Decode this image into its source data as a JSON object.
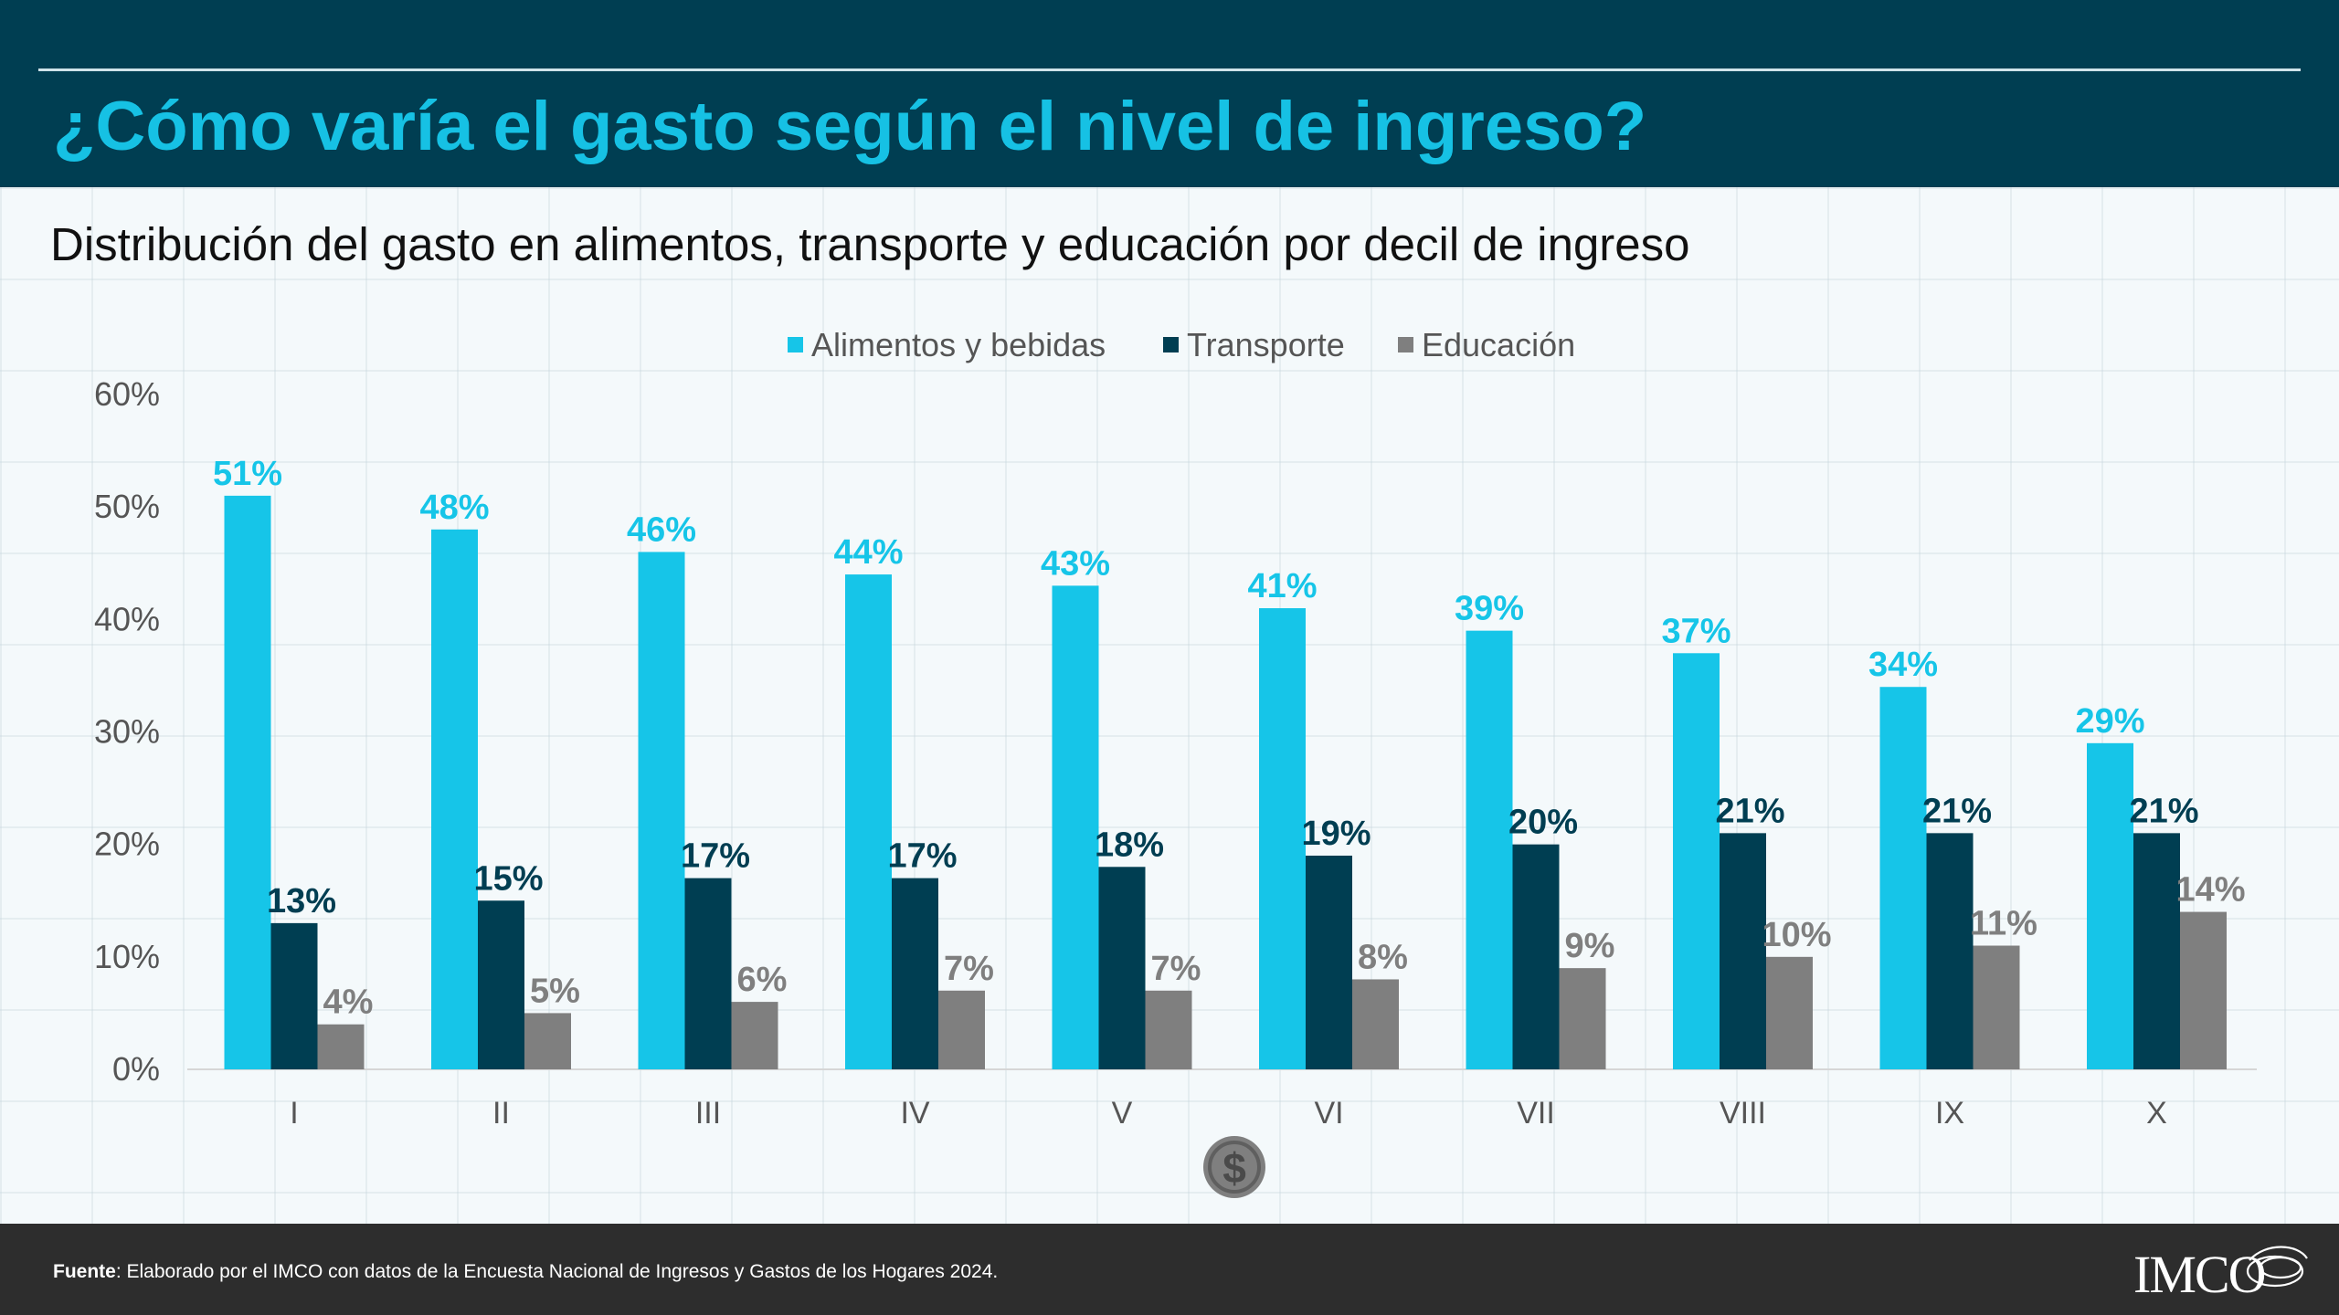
{
  "header": {
    "title": "¿Cómo varía el gasto según el nivel de ingreso?"
  },
  "subtitle": "Distribución del gasto en alimentos, transporte y educación por decil de ingreso",
  "footer": {
    "source_label": "Fuente",
    "source_text": ": Elaborado por el IMCO con datos de la Encuesta Nacional de Ingresos y Gastos de los Hogares 2024.",
    "logo_text": "IMCO"
  },
  "icons": {
    "center": "dollar-coin-icon"
  },
  "colors": {
    "header_bg": "#003e52",
    "title": "#16c1e4",
    "alimentos": "#16c5e8",
    "transporte": "#003e52",
    "educacion": "#7f7f7f",
    "footer_bg": "#2d2d2d"
  },
  "chart_data": {
    "type": "bar",
    "categories": [
      "I",
      "II",
      "III",
      "IV",
      "V",
      "VI",
      "VII",
      "VIII",
      "IX",
      "X"
    ],
    "series": [
      {
        "name": "Alimentos y bebidas",
        "color": "#16c5e8",
        "label_color": "#16c5e8",
        "values": [
          51,
          48,
          46,
          44,
          43,
          41,
          39,
          37,
          34,
          29
        ],
        "labels": [
          "51%",
          "48%",
          "46%",
          "44%",
          "43%",
          "41%",
          "39%",
          "37%",
          "34%",
          "29%"
        ]
      },
      {
        "name": "Transporte",
        "color": "#003e52",
        "label_color": "#003e52",
        "values": [
          13,
          15,
          17,
          17,
          18,
          19,
          20,
          21,
          21,
          21
        ],
        "labels": [
          "13%",
          "15%",
          "17%",
          "17%",
          "18%",
          "19%",
          "20%",
          "21%",
          "21%",
          "21%"
        ]
      },
      {
        "name": "Educación",
        "color": "#7f7f7f",
        "label_color": "#7f7f7f",
        "values": [
          4,
          5,
          6,
          7,
          7,
          8,
          9,
          10,
          11,
          14
        ],
        "labels": [
          "4%",
          "5%",
          "6%",
          "7%",
          "7%",
          "8%",
          "9%",
          "10%",
          "11%",
          "14%"
        ]
      }
    ],
    "yticks": [
      "0%",
      "10%",
      "20%",
      "30%",
      "40%",
      "50%",
      "60%"
    ],
    "ylim": [
      0,
      60
    ],
    "legend_position": "top-center",
    "grid": false
  }
}
